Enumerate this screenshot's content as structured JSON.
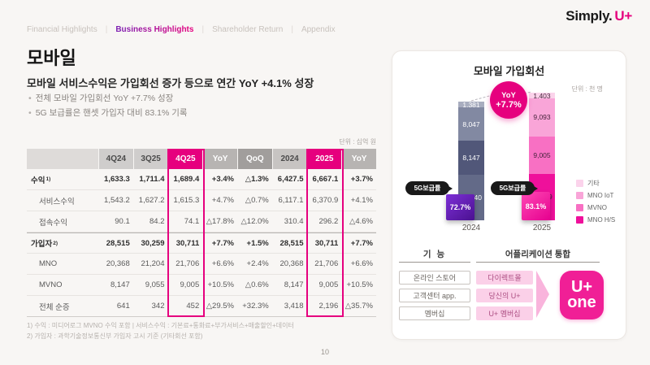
{
  "nav": {
    "separator": "|",
    "items": [
      {
        "label": "Financial Highlights",
        "active": false
      },
      {
        "label": "Business Highlights",
        "active": true
      },
      {
        "label": "Shareholder Return",
        "active": false
      },
      {
        "label": "Appendix",
        "active": false
      }
    ]
  },
  "logo": {
    "prefix": "Simply.",
    "brand": "U+"
  },
  "header": {
    "title": "모바일",
    "subtitle": "모바일 서비스수익은 가입회선 증가 등으로 연간 YoY +4.1% 성장",
    "bullets": [
      "전체 모바일 가입회선 YoY +7.7% 성장",
      "5G 보급률은 핸셋 가입자 대비 83.1% 기록"
    ]
  },
  "table": {
    "unit_note": "단위 : 십억 원",
    "columns": [
      "",
      "4Q24",
      "3Q25",
      "4Q25",
      "YoY",
      "QoQ",
      "2024",
      "2025",
      "YoY"
    ],
    "highlight_columns": [
      3,
      7
    ],
    "rows": [
      {
        "label": "수익",
        "sup": "1)",
        "bold": true,
        "indent": false,
        "section": false,
        "values": [
          "1,633.3",
          "1,711.4",
          "1,689.4",
          "+3.4%",
          "△1.3%",
          "6,427.5",
          "6,667.1",
          "+3.7%"
        ]
      },
      {
        "label": "서비스수익",
        "sup": "",
        "bold": false,
        "indent": true,
        "section": false,
        "values": [
          "1,543.2",
          "1,627.2",
          "1,615.3",
          "+4.7%",
          "△0.7%",
          "6,117.1",
          "6,370.9",
          "+4.1%"
        ]
      },
      {
        "label": "접속수익",
        "sup": "",
        "bold": false,
        "indent": true,
        "section": false,
        "values": [
          "90.1",
          "84.2",
          "74.1",
          "△17.8%",
          "△12.0%",
          "310.4",
          "296.2",
          "△4.6%"
        ]
      },
      {
        "label": "가입자",
        "sup": "2)",
        "bold": true,
        "indent": false,
        "section": true,
        "values": [
          "28,515",
          "30,259",
          "30,711",
          "+7.7%",
          "+1.5%",
          "28,515",
          "30,711",
          "+7.7%"
        ]
      },
      {
        "label": "MNO",
        "sup": "",
        "bold": false,
        "indent": true,
        "section": false,
        "values": [
          "20,368",
          "21,204",
          "21,706",
          "+6.6%",
          "+2.4%",
          "20,368",
          "21,706",
          "+6.6%"
        ]
      },
      {
        "label": "MVNO",
        "sup": "",
        "bold": false,
        "indent": true,
        "section": false,
        "values": [
          "8,147",
          "9,055",
          "9,005",
          "+10.5%",
          "△0.6%",
          "8,147",
          "9,005",
          "+10.5%"
        ]
      },
      {
        "label": "전체 순증",
        "sup": "",
        "bold": false,
        "indent": true,
        "section": false,
        "values": [
          "641",
          "342",
          "452",
          "△29.5%",
          "+32.3%",
          "3,418",
          "2,196",
          "△35.7%"
        ]
      }
    ],
    "footnotes": [
      "1) 수익 : 미디어로그 MVNO 수익 포함 | 서비스수익 : 기본료+통화료+부가서비스+매출할인+데이터",
      "2) 가입자 : 과학기술정보통신부 가입자 고시 기준 (기타회선 포함)"
    ]
  },
  "page_number": "10",
  "chart_data": {
    "type": "bar",
    "stacked": true,
    "title": "모바일 가입회선",
    "unit": "단위 : 천 명",
    "categories": [
      "2024",
      "2025"
    ],
    "series": [
      {
        "name": "기타",
        "values": [
          1381,
          1403
        ],
        "colors": [
          "#a8adbf",
          "#fbd3eb"
        ]
      },
      {
        "name": "MNO IoT",
        "values": [
          8047,
          9093
        ],
        "colors": [
          "#8289a2",
          "#f9a5d8"
        ]
      },
      {
        "name": "MVNO",
        "values": [
          8147,
          9005
        ],
        "colors": [
          "#515779",
          "#f870c3"
        ]
      },
      {
        "name": "MNO H/S",
        "values": [
          10940,
          11209
        ],
        "colors": [
          "#636a88",
          "#ef109b"
        ]
      }
    ],
    "totals": [
      28515,
      30711
    ],
    "label_colors": [
      "#ffffff",
      "#46243c"
    ],
    "yoy_badge": {
      "label": "YoY",
      "value": "+7.7%"
    },
    "penetration": {
      "label": "5G보급률",
      "items": [
        {
          "category": "2024",
          "value": "72.7%"
        },
        {
          "category": "2025",
          "value": "83.1%"
        }
      ]
    },
    "legend_position": "right"
  },
  "app_section": {
    "col1_header": "기 능",
    "col2_header": "어플리케이션 통합",
    "rows": [
      {
        "function": "온라인 스토어",
        "app": "다이렉트몰"
      },
      {
        "function": "고객센터 app.",
        "app": "당신의 U+"
      },
      {
        "function": "멤버십",
        "app": "U+ 멤버십"
      }
    ],
    "logo_line1": "U+",
    "logo_line2": "one"
  },
  "colors": {
    "accent": "#e6007e",
    "penetration_2024": "#5c1ea9",
    "penetration_2025": "#ef0f9b",
    "pill": "#191919"
  }
}
